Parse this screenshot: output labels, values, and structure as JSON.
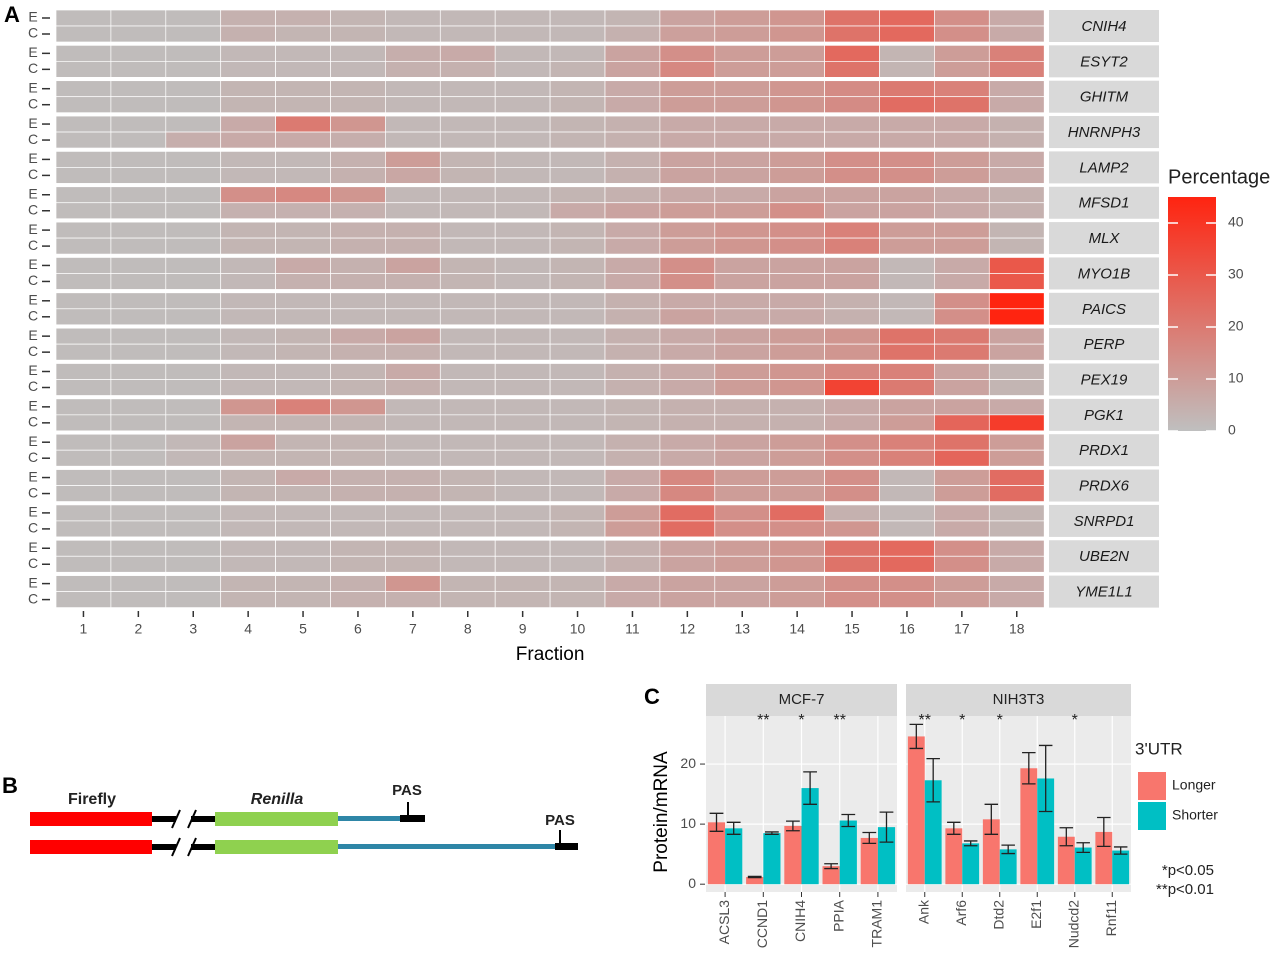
{
  "chart_data": [
    {
      "type": "heatmap",
      "panel": "A",
      "xlabel": "Fraction",
      "categories": [
        1,
        2,
        3,
        4,
        5,
        6,
        7,
        8,
        9,
        10,
        11,
        12,
        13,
        14,
        15,
        16,
        17,
        18
      ],
      "row_levels": [
        "E",
        "C"
      ],
      "series": [
        {
          "name": "CNIH4",
          "values": [
            [
              1,
              1,
              1,
              4,
              4,
              3,
              2,
              2,
              2,
              2,
              3,
              8,
              10,
              12,
              22,
              25,
              14,
              6
            ],
            [
              1,
              1,
              1,
              4,
              3,
              3,
              2,
              2,
              2,
              2,
              4,
              9,
              10,
              12,
              22,
              25,
              14,
              6
            ]
          ]
        },
        {
          "name": "ESYT2",
          "values": [
            [
              1,
              1,
              1,
              2,
              2,
              2,
              5,
              6,
              2,
              2,
              8,
              14,
              10,
              10,
              25,
              3,
              10,
              18
            ],
            [
              1,
              1,
              1,
              2,
              2,
              2,
              4,
              4,
              2,
              3,
              8,
              16,
              10,
              10,
              22,
              3,
              10,
              18
            ]
          ]
        },
        {
          "name": "GHITM",
          "values": [
            [
              1,
              1,
              1,
              3,
              3,
              3,
              2,
              2,
              2,
              3,
              6,
              10,
              10,
              12,
              15,
              20,
              18,
              6
            ],
            [
              1,
              1,
              1,
              3,
              3,
              3,
              2,
              2,
              2,
              3,
              6,
              10,
              10,
              12,
              15,
              24,
              22,
              6
            ]
          ]
        },
        {
          "name": "HNRNPH3",
          "values": [
            [
              1,
              1,
              1,
              6,
              20,
              12,
              2,
              2,
              2,
              3,
              4,
              6,
              6,
              6,
              6,
              6,
              6,
              4
            ],
            [
              1,
              1,
              5,
              6,
              6,
              5,
              2,
              2,
              2,
              3,
              4,
              6,
              6,
              6,
              6,
              6,
              6,
              4
            ]
          ]
        },
        {
          "name": "LAMP2",
          "values": [
            [
              1,
              1,
              1,
              2,
              2,
              4,
              10,
              3,
              2,
              2,
              4,
              8,
              8,
              10,
              14,
              14,
              10,
              6
            ],
            [
              1,
              1,
              1,
              2,
              2,
              4,
              7,
              3,
              2,
              2,
              4,
              8,
              8,
              10,
              14,
              14,
              10,
              6
            ]
          ]
        },
        {
          "name": "MFSD1",
          "values": [
            [
              1,
              1,
              1,
              14,
              16,
              12,
              2,
              2,
              2,
              3,
              4,
              6,
              6,
              8,
              8,
              8,
              6,
              4
            ],
            [
              1,
              1,
              1,
              4,
              4,
              4,
              2,
              2,
              2,
              6,
              8,
              10,
              10,
              14,
              8,
              8,
              6,
              4
            ]
          ]
        },
        {
          "name": "MLX",
          "values": [
            [
              1,
              1,
              1,
              3,
              3,
              4,
              4,
              2,
              2,
              3,
              6,
              10,
              12,
              14,
              18,
              10,
              10,
              3
            ],
            [
              1,
              1,
              1,
              3,
              3,
              4,
              4,
              2,
              2,
              3,
              6,
              10,
              12,
              14,
              18,
              10,
              10,
              3
            ]
          ]
        },
        {
          "name": "MYO1B",
          "values": [
            [
              1,
              1,
              1,
              2,
              6,
              4,
              8,
              3,
              2,
              3,
              6,
              14,
              8,
              8,
              8,
              2,
              6,
              30
            ],
            [
              1,
              1,
              1,
              2,
              4,
              4,
              4,
              3,
              2,
              3,
              6,
              14,
              8,
              8,
              8,
              2,
              6,
              30
            ]
          ]
        },
        {
          "name": "PAICS",
          "values": [
            [
              1,
              1,
              1,
              2,
              2,
              2,
              2,
              2,
              2,
              2,
              4,
              6,
              6,
              6,
              4,
              2,
              14,
              45
            ],
            [
              1,
              1,
              1,
              2,
              2,
              2,
              2,
              2,
              2,
              2,
              4,
              8,
              6,
              6,
              4,
              2,
              14,
              45
            ]
          ]
        },
        {
          "name": "PERP",
          "values": [
            [
              1,
              1,
              1,
              2,
              3,
              6,
              8,
              2,
              2,
              2,
              4,
              6,
              8,
              10,
              12,
              22,
              20,
              8
            ],
            [
              1,
              1,
              1,
              2,
              3,
              4,
              4,
              2,
              2,
              2,
              4,
              6,
              8,
              10,
              12,
              22,
              20,
              8
            ]
          ]
        },
        {
          "name": "PEX19",
          "values": [
            [
              1,
              1,
              1,
              2,
              2,
              3,
              6,
              2,
              2,
              2,
              4,
              6,
              10,
              12,
              16,
              18,
              8,
              3
            ],
            [
              1,
              1,
              1,
              2,
              2,
              3,
              4,
              2,
              2,
              2,
              4,
              6,
              10,
              12,
              36,
              20,
              8,
              3
            ]
          ]
        },
        {
          "name": "PGK1",
          "values": [
            [
              1,
              1,
              1,
              12,
              18,
              12,
              2,
              2,
              2,
              2,
              3,
              4,
              4,
              4,
              6,
              8,
              8,
              6
            ],
            [
              1,
              1,
              1,
              3,
              3,
              3,
              2,
              2,
              2,
              2,
              3,
              4,
              4,
              4,
              6,
              10,
              26,
              38
            ]
          ]
        },
        {
          "name": "PRDX1",
          "values": [
            [
              1,
              1,
              2,
              8,
              3,
              3,
              2,
              2,
              2,
              2,
              4,
              6,
              8,
              10,
              14,
              18,
              22,
              10
            ],
            [
              1,
              1,
              2,
              3,
              3,
              3,
              2,
              2,
              2,
              2,
              4,
              6,
              8,
              10,
              14,
              18,
              26,
              10
            ]
          ]
        },
        {
          "name": "PRDX6",
          "values": [
            [
              1,
              1,
              1,
              3,
              6,
              4,
              4,
              3,
              2,
              2,
              6,
              16,
              10,
              10,
              14,
              2,
              10,
              24
            ],
            [
              1,
              1,
              1,
              3,
              3,
              4,
              4,
              3,
              2,
              2,
              6,
              16,
              10,
              10,
              14,
              2,
              10,
              24
            ]
          ]
        },
        {
          "name": "SNRPD1",
          "values": [
            [
              1,
              1,
              1,
              2,
              2,
              2,
              2,
              2,
              2,
              3,
              10,
              24,
              14,
              24,
              4,
              2,
              6,
              3
            ],
            [
              1,
              1,
              1,
              2,
              2,
              2,
              2,
              2,
              2,
              3,
              10,
              24,
              14,
              14,
              12,
              2,
              6,
              3
            ]
          ]
        },
        {
          "name": "UBE2N",
          "values": [
            [
              1,
              1,
              1,
              2,
              2,
              3,
              3,
              2,
              2,
              2,
              4,
              8,
              10,
              12,
              22,
              25,
              14,
              6
            ],
            [
              1,
              1,
              1,
              2,
              2,
              3,
              3,
              2,
              2,
              2,
              4,
              8,
              10,
              12,
              22,
              25,
              14,
              6
            ]
          ]
        },
        {
          "name": "YME1L1",
          "values": [
            [
              1,
              1,
              1,
              3,
              3,
              4,
              12,
              3,
              3,
              3,
              6,
              8,
              8,
              10,
              14,
              14,
              10,
              6
            ],
            [
              1,
              1,
              1,
              3,
              3,
              4,
              4,
              3,
              3,
              3,
              6,
              8,
              8,
              10,
              14,
              14,
              10,
              6
            ]
          ]
        }
      ],
      "colorbar": {
        "title": "Percentage",
        "lim": [
          0,
          45
        ],
        "ticks": [
          0,
          10,
          20,
          30,
          40
        ],
        "colors": [
          "#bfbfbf",
          "#ff2410"
        ]
      }
    },
    {
      "type": "bar",
      "panel": "C",
      "ylabel": "Protein/mRNA",
      "legend_title": "3'UTR",
      "ylim": [
        -1.3,
        28
      ],
      "yticks": [
        0,
        10,
        20
      ],
      "grid": true,
      "series": [
        {
          "name": "Longer",
          "color": "#f8766d"
        },
        {
          "name": "Shorter",
          "color": "#00bfc4"
        }
      ],
      "facets": [
        {
          "name": "MCF-7",
          "categories": [
            "ACSL3",
            "CCND1",
            "CNIH4",
            "PPIA",
            "TRAM1"
          ],
          "values": [
            [
              10.3,
              1.2,
              9.7,
              3,
              7.7
            ],
            [
              9.3,
              8.5,
              16,
              10.6,
              9.5
            ]
          ],
          "errors": [
            [
              1.5,
              0.1,
              0.8,
              0.4,
              0.9
            ],
            [
              1.0,
              0.2,
              2.7,
              1.0,
              2.5
            ]
          ],
          "annotations": [
            null,
            "**",
            "*",
            "**",
            null
          ]
        },
        {
          "name": "NIH3T3",
          "categories": [
            "Ank",
            "Arf6",
            "Dtd2",
            "E2f1",
            "Nudcd2",
            "Rnf11"
          ],
          "values": [
            [
              24.6,
              9.3,
              10.8,
              19.3,
              7.9,
              8.7
            ],
            [
              17.3,
              6.8,
              5.8,
              17.6,
              6.1,
              5.6
            ]
          ],
          "errors": [
            [
              2.0,
              1.0,
              2.5,
              2.6,
              1.5,
              2.4
            ],
            [
              3.6,
              0.4,
              0.7,
              5.5,
              0.8,
              0.6
            ]
          ],
          "annotations": [
            "**",
            "*",
            "*",
            null,
            "*",
            null
          ]
        }
      ],
      "footnotes": [
        "*p<0.05",
        "**p<0.01"
      ]
    }
  ],
  "diagram": {
    "panel": "B",
    "firefly": "Firefly",
    "renilla": "Renilla",
    "pas": "PAS"
  }
}
